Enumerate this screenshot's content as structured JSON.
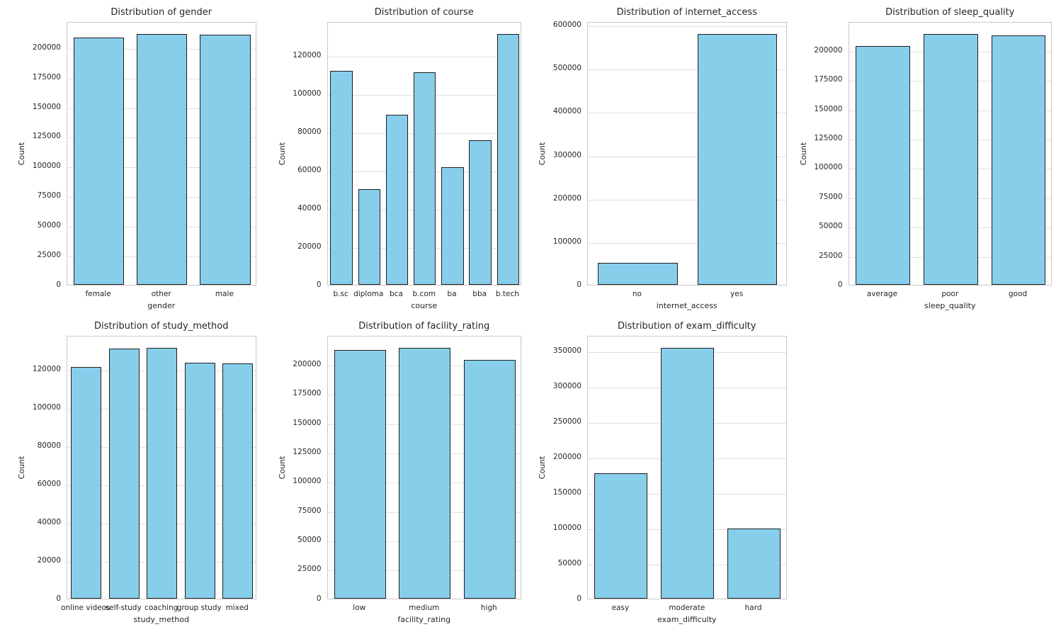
{
  "figure": {
    "background": "#ffffff",
    "rows": 2,
    "cols": 4,
    "empty_cells": 1
  },
  "style": {
    "bar_fill": "#87CEEB",
    "bar_edge": "#1f1f1f",
    "grid_color": "#e0e0e0",
    "spine_color": "#c9c9c9",
    "text_color": "#262626"
  },
  "chart_data": [
    {
      "type": "bar",
      "title": "Distribution of gender",
      "xlabel": "gender",
      "ylabel": "Count",
      "categories": [
        "female",
        "other",
        "male"
      ],
      "values": [
        208300,
        211300,
        210400
      ],
      "yticks": [
        0,
        25000,
        50000,
        75000,
        100000,
        125000,
        150000,
        175000,
        200000
      ],
      "ylim": [
        0,
        221900
      ],
      "grid": true
    },
    {
      "type": "bar",
      "title": "Distribution of course",
      "xlabel": "course",
      "ylabel": "Count",
      "categories": [
        "b.sc",
        "diploma",
        "bca",
        "b.com",
        "ba",
        "bba",
        "b.tech"
      ],
      "values": [
        111700,
        49800,
        88800,
        111000,
        61500,
        75500,
        131000
      ],
      "yticks": [
        0,
        20000,
        40000,
        60000,
        80000,
        100000,
        120000
      ],
      "ylim": [
        0,
        137600
      ],
      "grid": true
    },
    {
      "type": "bar",
      "title": "Distribution of internet_access",
      "xlabel": "internet_access",
      "ylabel": "Count",
      "categories": [
        "no",
        "yes"
      ],
      "values": [
        50500,
        579500
      ],
      "yticks": [
        0,
        100000,
        200000,
        300000,
        400000,
        500000,
        600000
      ],
      "ylim": [
        0,
        608500
      ],
      "grid": true
    },
    {
      "type": "bar",
      "title": "Distribution of sleep_quality",
      "xlabel": "sleep_quality",
      "ylabel": "Count",
      "categories": [
        "average",
        "poor",
        "good"
      ],
      "values": [
        203300,
        214000,
        212900
      ],
      "yticks": [
        0,
        25000,
        50000,
        75000,
        100000,
        125000,
        150000,
        175000,
        200000
      ],
      "ylim": [
        0,
        224700
      ],
      "grid": true
    },
    {
      "type": "bar",
      "title": "Distribution of study_method",
      "xlabel": "study_method",
      "ylabel": "Count",
      "categories": [
        "online videos",
        "self-study",
        "coaching",
        "group study",
        "mixed"
      ],
      "values": [
        121000,
        130800,
        131200,
        123200,
        123100
      ],
      "yticks": [
        0,
        20000,
        40000,
        60000,
        80000,
        100000,
        120000
      ],
      "ylim": [
        0,
        137800
      ],
      "grid": true
    },
    {
      "type": "bar",
      "title": "Distribution of facility_rating",
      "xlabel": "facility_rating",
      "ylabel": "Count",
      "categories": [
        "low",
        "medium",
        "high"
      ],
      "values": [
        212400,
        214300,
        203600
      ],
      "yticks": [
        0,
        25000,
        50000,
        75000,
        100000,
        125000,
        150000,
        175000,
        200000
      ],
      "ylim": [
        0,
        225000
      ],
      "grid": true
    },
    {
      "type": "bar",
      "title": "Distribution of exam_difficulty",
      "xlabel": "exam_difficulty",
      "ylabel": "Count",
      "categories": [
        "easy",
        "moderate",
        "hard"
      ],
      "values": [
        177000,
        354500,
        99500
      ],
      "yticks": [
        0,
        50000,
        100000,
        150000,
        200000,
        250000,
        300000,
        350000
      ],
      "ylim": [
        0,
        372200
      ],
      "grid": true
    }
  ]
}
